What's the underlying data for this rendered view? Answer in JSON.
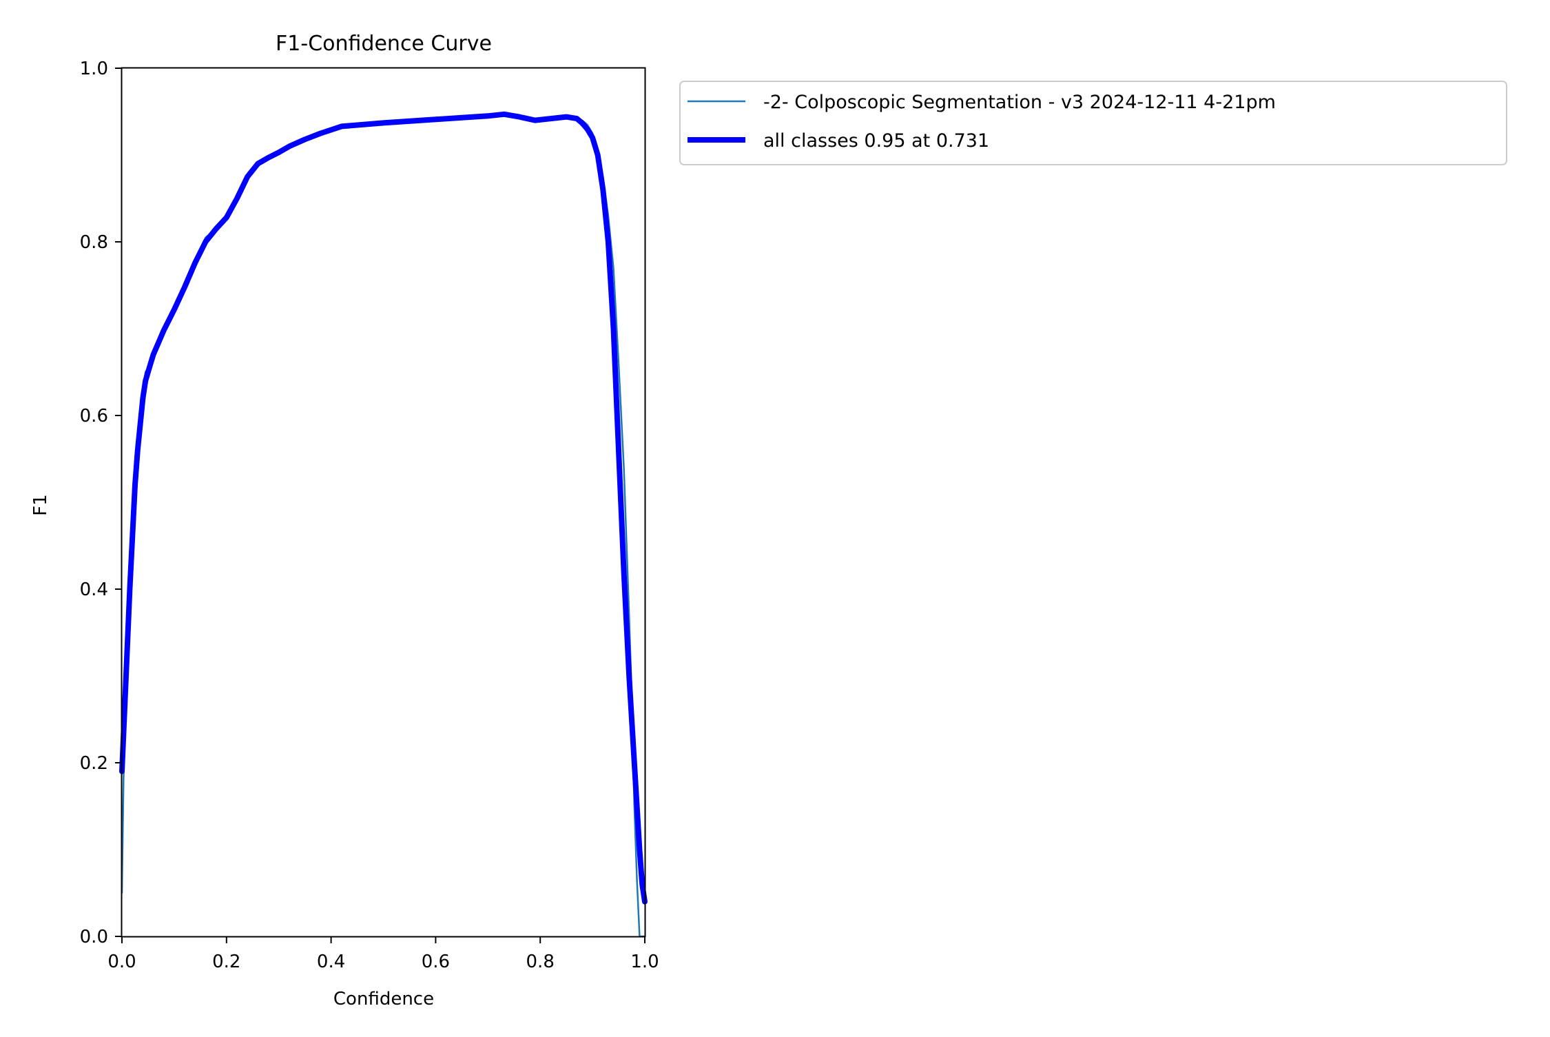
{
  "chart_data": {
    "type": "line",
    "title": "F1-Confidence Curve",
    "xlabel": "Confidence",
    "ylabel": "F1",
    "xlim": [
      0.0,
      1.0
    ],
    "ylim": [
      0.0,
      1.0
    ],
    "xticks": [
      "0.0",
      "0.2",
      "0.4",
      "0.6",
      "0.8",
      "1.0"
    ],
    "yticks": [
      "0.0",
      "0.2",
      "0.4",
      "0.6",
      "0.8",
      "1.0"
    ],
    "grid": false,
    "legend_position": "outside-upper-right",
    "series": [
      {
        "name": "-2- Colposcopic Segmentation - v3 2024-12-11 4-21pm",
        "color": "#1f77b4",
        "line_width": "thin",
        "x": [
          0.0,
          0.003,
          0.006,
          0.01,
          0.015,
          0.02,
          0.025,
          0.03,
          0.035,
          0.04,
          0.045,
          0.05,
          0.055,
          0.06,
          0.07,
          0.08,
          0.09,
          0.1,
          0.12,
          0.14,
          0.16,
          0.18,
          0.2,
          0.22,
          0.24,
          0.26,
          0.28,
          0.3,
          0.32,
          0.35,
          0.38,
          0.42,
          0.5,
          0.6,
          0.7,
          0.73,
          0.76,
          0.79,
          0.82,
          0.85,
          0.87,
          0.88,
          0.89,
          0.9,
          0.91,
          0.92,
          0.93,
          0.94,
          0.95,
          0.96,
          0.97,
          0.975,
          0.98,
          0.985,
          0.99,
          0.993,
          0.996,
          1.0
        ],
        "y": [
          0.05,
          0.18,
          0.26,
          0.33,
          0.41,
          0.47,
          0.53,
          0.58,
          0.61,
          0.63,
          0.65,
          0.655,
          0.66,
          0.67,
          0.685,
          0.7,
          0.71,
          0.725,
          0.75,
          0.78,
          0.805,
          0.815,
          0.83,
          0.85,
          0.875,
          0.892,
          0.897,
          0.903,
          0.91,
          0.918,
          0.925,
          0.933,
          0.937,
          0.941,
          0.945,
          0.946,
          0.942,
          0.94,
          0.942,
          0.944,
          0.943,
          0.94,
          0.935,
          0.925,
          0.905,
          0.875,
          0.83,
          0.77,
          0.66,
          0.54,
          0.37,
          0.28,
          0.15,
          0.065,
          0.0,
          0.0,
          0.0,
          0.0
        ]
      },
      {
        "name": "all classes 0.95 at 0.731",
        "color": "#0000ff",
        "line_width": "thick",
        "x": [
          0.0,
          0.005,
          0.01,
          0.015,
          0.02,
          0.025,
          0.03,
          0.035,
          0.04,
          0.045,
          0.05,
          0.055,
          0.06,
          0.07,
          0.08,
          0.09,
          0.1,
          0.12,
          0.14,
          0.16,
          0.18,
          0.2,
          0.22,
          0.24,
          0.26,
          0.28,
          0.3,
          0.32,
          0.35,
          0.38,
          0.42,
          0.5,
          0.6,
          0.7,
          0.731,
          0.76,
          0.79,
          0.82,
          0.85,
          0.87,
          0.88,
          0.89,
          0.9,
          0.91,
          0.92,
          0.93,
          0.94,
          0.95,
          0.96,
          0.97,
          0.98,
          0.985,
          0.99,
          0.995,
          1.0
        ],
        "y": [
          0.19,
          0.26,
          0.33,
          0.4,
          0.46,
          0.52,
          0.56,
          0.59,
          0.62,
          0.64,
          0.65,
          0.66,
          0.67,
          0.684,
          0.698,
          0.71,
          0.722,
          0.748,
          0.776,
          0.8,
          0.815,
          0.828,
          0.85,
          0.875,
          0.89,
          0.897,
          0.903,
          0.91,
          0.918,
          0.925,
          0.933,
          0.937,
          0.941,
          0.945,
          0.947,
          0.944,
          0.94,
          0.942,
          0.944,
          0.942,
          0.937,
          0.93,
          0.92,
          0.9,
          0.86,
          0.8,
          0.7,
          0.56,
          0.42,
          0.3,
          0.2,
          0.15,
          0.1,
          0.06,
          0.04
        ]
      }
    ]
  }
}
